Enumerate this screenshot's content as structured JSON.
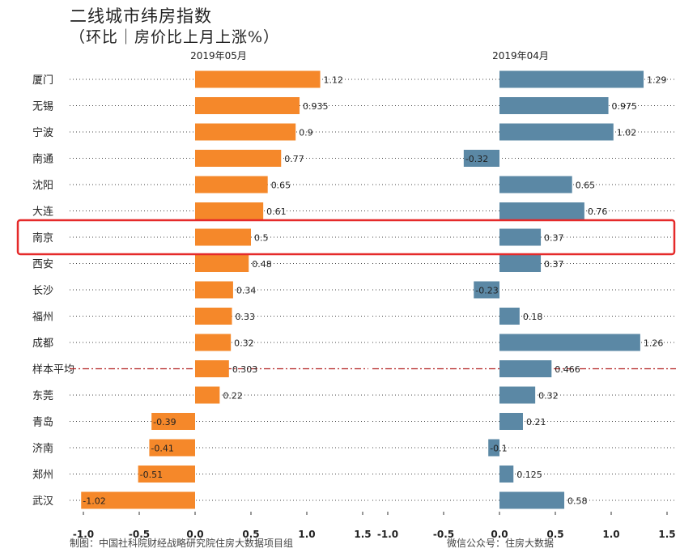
{
  "title": {
    "line1": "二线城市纬房指数",
    "line2": "（环比｜房价比上月上涨%）"
  },
  "footer": {
    "left": "制图：中国社科院财经战略研究院住房大数据项目组",
    "right": "微信公众号：住房大数据"
  },
  "colors": {
    "left_bar": "#f5882a",
    "right_bar": "#5b88a5",
    "highlight": "#e52a2a",
    "average_line": "#b22222"
  },
  "chart_data": [
    {
      "type": "bar",
      "orientation": "horizontal",
      "title": "2019年05月",
      "categories": [
        "厦门",
        "无锡",
        "宁波",
        "南通",
        "沈阳",
        "大连",
        "南京",
        "西安",
        "长沙",
        "福州",
        "成都",
        "样本平均",
        "东莞",
        "青岛",
        "济南",
        "郑州",
        "武汉"
      ],
      "values": [
        1.12,
        0.935,
        0.9,
        0.77,
        0.65,
        0.61,
        0.5,
        0.48,
        0.34,
        0.33,
        0.32,
        0.303,
        0.22,
        -0.39,
        -0.41,
        -0.51,
        -1.02
      ],
      "labels": [
        "1.12",
        "0.935",
        "0.9",
        "0.77",
        "0.65",
        "0.61",
        "0.5",
        "0.48",
        "0.34",
        "0.33",
        "0.32",
        "0.303",
        "0.22",
        "-0.39",
        "-0.41",
        "-0.51",
        "-1.02"
      ],
      "xlim": [
        -1.0,
        1.5
      ],
      "xticks": [
        "-1.0",
        "-0.5",
        "0.0",
        "0.5",
        "1.0",
        "1.5"
      ],
      "highlight": "南京",
      "average": "样本平均"
    },
    {
      "type": "bar",
      "orientation": "horizontal",
      "title": "2019年04月",
      "categories": [
        "厦门",
        "无锡",
        "宁波",
        "南通",
        "沈阳",
        "大连",
        "南京",
        "西安",
        "长沙",
        "福州",
        "成都",
        "样本平均",
        "东莞",
        "青岛",
        "济南",
        "郑州",
        "武汉"
      ],
      "values": [
        1.29,
        0.975,
        1.02,
        -0.32,
        0.65,
        0.76,
        0.37,
        0.37,
        -0.23,
        0.18,
        1.26,
        0.466,
        0.32,
        0.21,
        -0.1,
        0.125,
        0.58
      ],
      "labels": [
        "1.29",
        "0.975",
        "1.02",
        "-0.32",
        "0.65",
        "0.76",
        "0.37",
        "0.37",
        "-0.23",
        "0.18",
        "1.26",
        "0.466",
        "0.32",
        "0.21",
        "-0.1",
        "0.125",
        "0.58"
      ],
      "xlim": [
        -1.0,
        1.5
      ],
      "xticks": [
        "-1.0",
        "-0.5",
        "0.0",
        "0.5",
        "1.0",
        "1.5"
      ],
      "highlight": "南京",
      "average": "样本平均"
    }
  ]
}
